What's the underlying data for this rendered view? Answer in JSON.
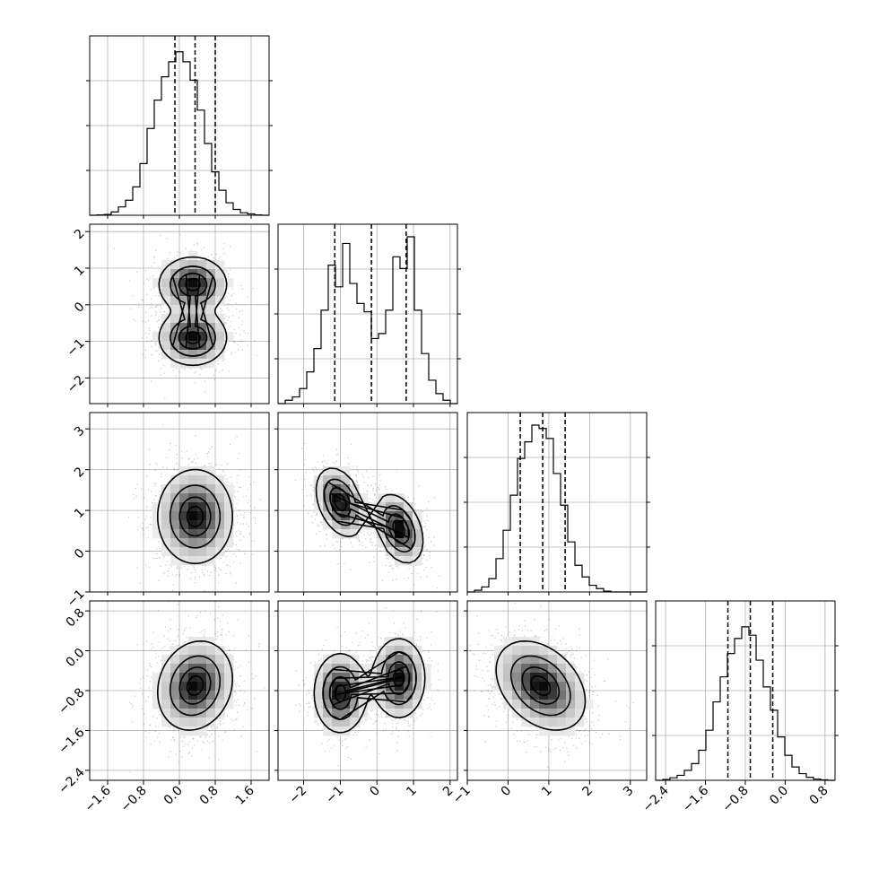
{
  "chart_data": {
    "type": "corner",
    "grid": true,
    "quantile_lines": "dashed",
    "parameters": [
      {
        "range": [
          -2.0,
          2.0
        ],
        "ticks": [
          -1.6,
          -0.8,
          0.0,
          0.8,
          1.6
        ],
        "tick_labels": [
          "−1.6",
          "−0.8",
          "0.0",
          "0.8",
          "1.6"
        ],
        "quantiles": [
          -0.1,
          0.35,
          0.8
        ],
        "hist": [
          0.0,
          0.002,
          0.005,
          0.02,
          0.05,
          0.09,
          0.17,
          0.31,
          0.52,
          0.69,
          0.83,
          0.92,
          0.98,
          0.92,
          0.81,
          0.63,
          0.43,
          0.26,
          0.15,
          0.075,
          0.035,
          0.015,
          0.008,
          0.002,
          0.0
        ]
      },
      {
        "range": [
          -2.7,
          2.2
        ],
        "ticks": [
          -2,
          -1,
          0,
          1,
          2
        ],
        "tick_labels": [
          "−2",
          "−1",
          "0",
          "1",
          "2"
        ],
        "quantiles": [
          -1.15,
          -0.15,
          0.8
        ],
        "hist": [
          0.0,
          0.02,
          0.04,
          0.09,
          0.19,
          0.33,
          0.56,
          0.83,
          0.7,
          0.96,
          0.72,
          0.6,
          0.55,
          0.39,
          0.42,
          0.56,
          0.88,
          0.81,
          1.0,
          0.56,
          0.3,
          0.14,
          0.06,
          0.02,
          0.0
        ]
      },
      {
        "range": [
          -1.0,
          3.4
        ],
        "ticks": [
          -1,
          0,
          1,
          2,
          3
        ],
        "tick_labels": [
          "−1",
          "0",
          "1",
          "2",
          "3"
        ],
        "quantiles": [
          0.3,
          0.85,
          1.4
        ],
        "hist": [
          0.0,
          0.01,
          0.03,
          0.08,
          0.2,
          0.37,
          0.58,
          0.8,
          0.9,
          1.0,
          0.98,
          0.92,
          0.71,
          0.52,
          0.3,
          0.16,
          0.09,
          0.04,
          0.02,
          0.005,
          0.0,
          0.0,
          0.0,
          0.0,
          0.0
        ]
      },
      {
        "range": [
          -2.6,
          1.0
        ],
        "ticks": [
          -2.4,
          -1.6,
          -0.8,
          0.0,
          0.8
        ],
        "tick_labels": [
          "−2.4",
          "−1.6",
          "−0.8",
          "0.0",
          "0.8"
        ],
        "quantiles": [
          -1.15,
          -0.7,
          -0.25
        ],
        "hist": [
          0.0,
          0.005,
          0.015,
          0.03,
          0.06,
          0.1,
          0.18,
          0.3,
          0.47,
          0.62,
          0.76,
          0.85,
          0.92,
          0.87,
          0.72,
          0.56,
          0.42,
          0.26,
          0.15,
          0.08,
          0.04,
          0.018,
          0.007,
          0.003,
          0.0
        ]
      }
    ],
    "pairs": [
      {
        "x": 0,
        "y": 1,
        "modes": [
          {
            "mx": 0.3,
            "my": 0.55,
            "sx": 0.38,
            "sy": 0.38,
            "rho": 0.0,
            "w": 0.5
          },
          {
            "mx": 0.3,
            "my": -0.9,
            "sx": 0.38,
            "sy": 0.38,
            "rho": 0.0,
            "w": 0.5
          }
        ]
      },
      {
        "x": 0,
        "y": 2,
        "modes": [
          {
            "mx": 0.35,
            "my": 0.85,
            "sx": 0.42,
            "sy": 0.58,
            "rho": 0.0,
            "w": 1.0
          }
        ]
      },
      {
        "x": 1,
        "y": 2,
        "modes": [
          {
            "mx": -1.0,
            "my": 1.2,
            "sx": 0.33,
            "sy": 0.42,
            "rho": -0.35,
            "w": 0.5
          },
          {
            "mx": 0.6,
            "my": 0.55,
            "sx": 0.33,
            "sy": 0.42,
            "rho": -0.35,
            "w": 0.5
          }
        ]
      },
      {
        "x": 0,
        "y": 3,
        "modes": [
          {
            "mx": 0.35,
            "my": -0.7,
            "sx": 0.42,
            "sy": 0.45,
            "rho": 0.15,
            "w": 1.0
          }
        ]
      },
      {
        "x": 1,
        "y": 3,
        "modes": [
          {
            "mx": -1.0,
            "my": -0.85,
            "sx": 0.36,
            "sy": 0.4,
            "rho": 0.0,
            "w": 0.5
          },
          {
            "mx": 0.6,
            "my": -0.55,
            "sx": 0.36,
            "sy": 0.4,
            "rho": 0.0,
            "w": 0.5
          }
        ]
      },
      {
        "x": 2,
        "y": 3,
        "modes": [
          {
            "mx": 0.8,
            "my": -0.7,
            "sx": 0.55,
            "sy": 0.45,
            "rho": -0.35,
            "w": 1.0
          }
        ]
      }
    ]
  }
}
